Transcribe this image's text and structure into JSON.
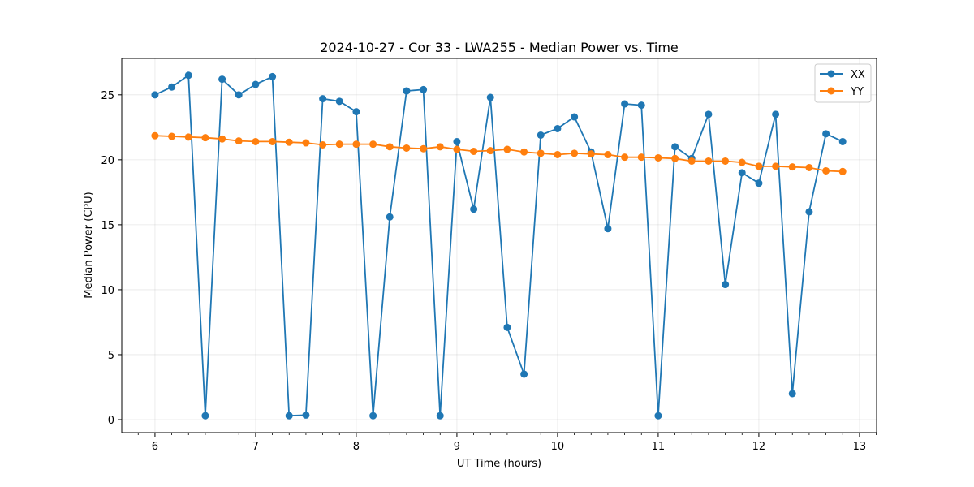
{
  "chart_data": {
    "type": "line",
    "title": "2024-10-27 - Cor 33 - LWA255 - Median Power vs. Time",
    "xlabel": "UT Time (hours)",
    "ylabel": "Median Power (CPU)",
    "xlim": [
      5.67,
      13.17
    ],
    "ylim": [
      -1.0,
      27.8
    ],
    "xticks": [
      6,
      7,
      8,
      9,
      10,
      11,
      12,
      13
    ],
    "yticks": [
      0,
      5,
      10,
      15,
      20,
      25
    ],
    "grid": true,
    "legend_position": "top-right",
    "series": [
      {
        "name": "XX",
        "color": "#1f77b4",
        "marker": "circle",
        "x": [
          6.0,
          6.167,
          6.333,
          6.5,
          6.667,
          6.833,
          7.0,
          7.167,
          7.333,
          7.5,
          7.667,
          7.833,
          8.0,
          8.167,
          8.333,
          8.5,
          8.667,
          8.833,
          9.0,
          9.167,
          9.333,
          9.5,
          9.667,
          9.833,
          10.0,
          10.167,
          10.333,
          10.5,
          10.667,
          10.833,
          11.0,
          11.167,
          11.333,
          11.5,
          11.667,
          11.833,
          12.0,
          12.167,
          12.333,
          12.5,
          12.667,
          12.833
        ],
        "y": [
          25.0,
          25.6,
          26.5,
          0.3,
          26.2,
          25.0,
          25.8,
          26.4,
          0.3,
          0.35,
          24.7,
          24.5,
          23.7,
          0.3,
          15.6,
          25.3,
          25.4,
          0.3,
          21.4,
          16.2,
          24.8,
          7.1,
          3.5,
          21.9,
          22.4,
          23.3,
          20.6,
          14.7,
          24.3,
          24.2,
          0.3,
          21.0,
          20.1,
          23.5,
          10.4,
          19.0,
          18.2,
          23.5,
          2.0,
          16.0,
          22.0,
          21.4
        ]
      },
      {
        "name": "YY",
        "color": "#ff7f0e",
        "marker": "circle",
        "x": [
          6.0,
          6.167,
          6.333,
          6.5,
          6.667,
          6.833,
          7.0,
          7.167,
          7.333,
          7.5,
          7.667,
          7.833,
          8.0,
          8.167,
          8.333,
          8.5,
          8.667,
          8.833,
          9.0,
          9.167,
          9.333,
          9.5,
          9.667,
          9.833,
          10.0,
          10.167,
          10.333,
          10.5,
          10.667,
          10.833,
          11.0,
          11.167,
          11.333,
          11.5,
          11.667,
          11.833,
          12.0,
          12.167,
          12.333,
          12.5,
          12.667,
          12.833
        ],
        "y": [
          21.85,
          21.8,
          21.75,
          21.7,
          21.6,
          21.45,
          21.4,
          21.4,
          21.35,
          21.3,
          21.15,
          21.2,
          21.2,
          21.2,
          21.0,
          20.9,
          20.85,
          21.0,
          20.8,
          20.65,
          20.7,
          20.8,
          20.6,
          20.5,
          20.4,
          20.5,
          20.45,
          20.4,
          20.2,
          20.2,
          20.15,
          20.1,
          19.9,
          19.9,
          19.9,
          19.8,
          19.5,
          19.5,
          19.45,
          19.4,
          19.15,
          19.1
        ]
      }
    ]
  }
}
